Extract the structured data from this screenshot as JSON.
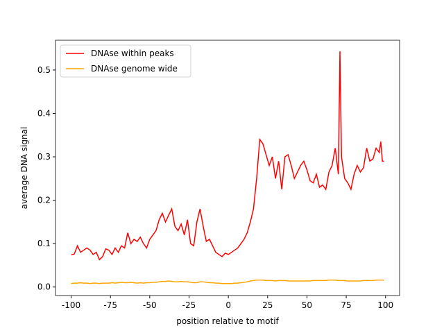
{
  "chart_data": {
    "type": "line",
    "xlabel": "position relative to motif",
    "ylabel": "average DNA signal",
    "x": [
      -100,
      -98,
      -96,
      -94,
      -92,
      -90,
      -88,
      -86,
      -84,
      -82,
      -80,
      -78,
      -76,
      -74,
      -72,
      -70,
      -68,
      -66,
      -64,
      -62,
      -60,
      -58,
      -56,
      -54,
      -52,
      -50,
      -48,
      -46,
      -44,
      -42,
      -40,
      -38,
      -36,
      -34,
      -32,
      -30,
      -28,
      -26,
      -24,
      -22,
      -20,
      -18,
      -16,
      -14,
      -12,
      -10,
      -8,
      -6,
      -4,
      -2,
      0,
      2,
      4,
      6,
      8,
      10,
      12,
      14,
      16,
      18,
      20,
      22,
      24,
      26,
      28,
      30,
      32,
      34,
      36,
      38,
      40,
      42,
      44,
      46,
      48,
      50,
      52,
      54,
      56,
      58,
      60,
      62,
      64,
      66,
      68,
      70,
      71,
      72,
      74,
      76,
      78,
      80,
      82,
      84,
      86,
      88,
      90,
      92,
      94,
      96,
      97,
      98,
      99
    ],
    "series": [
      {
        "name": "DNAse within peaks",
        "color": "#ff0000",
        "values": [
          0.074,
          0.076,
          0.095,
          0.08,
          0.085,
          0.09,
          0.085,
          0.075,
          0.08,
          0.063,
          0.07,
          0.088,
          0.085,
          0.075,
          0.09,
          0.08,
          0.095,
          0.09,
          0.125,
          0.1,
          0.11,
          0.105,
          0.115,
          0.1,
          0.09,
          0.11,
          0.12,
          0.13,
          0.155,
          0.17,
          0.15,
          0.165,
          0.18,
          0.14,
          0.13,
          0.145,
          0.12,
          0.155,
          0.1,
          0.095,
          0.15,
          0.18,
          0.14,
          0.105,
          0.11,
          0.095,
          0.08,
          0.075,
          0.07,
          0.078,
          0.075,
          0.08,
          0.085,
          0.09,
          0.1,
          0.11,
          0.125,
          0.15,
          0.18,
          0.25,
          0.34,
          0.33,
          0.305,
          0.28,
          0.3,
          0.25,
          0.29,
          0.225,
          0.3,
          0.305,
          0.28,
          0.25,
          0.265,
          0.28,
          0.29,
          0.27,
          0.245,
          0.24,
          0.26,
          0.23,
          0.235,
          0.225,
          0.265,
          0.28,
          0.32,
          0.26,
          0.543,
          0.3,
          0.25,
          0.24,
          0.225,
          0.26,
          0.28,
          0.265,
          0.275,
          0.32,
          0.29,
          0.295,
          0.32,
          0.31,
          0.335,
          0.29,
          0.29
        ]
      },
      {
        "name": "DNAse genome wide",
        "color": "#ffa500",
        "values": [
          0.008,
          0.009,
          0.009,
          0.01,
          0.009,
          0.009,
          0.008,
          0.009,
          0.009,
          0.008,
          0.009,
          0.009,
          0.009,
          0.01,
          0.009,
          0.01,
          0.011,
          0.01,
          0.01,
          0.011,
          0.01,
          0.009,
          0.01,
          0.009,
          0.01,
          0.01,
          0.011,
          0.011,
          0.012,
          0.013,
          0.013,
          0.014,
          0.013,
          0.012,
          0.012,
          0.013,
          0.012,
          0.012,
          0.011,
          0.01,
          0.01,
          0.012,
          0.012,
          0.011,
          0.01,
          0.01,
          0.009,
          0.009,
          0.008,
          0.008,
          0.008,
          0.008,
          0.009,
          0.009,
          0.01,
          0.011,
          0.012,
          0.014,
          0.015,
          0.016,
          0.016,
          0.016,
          0.015,
          0.015,
          0.015,
          0.014,
          0.015,
          0.015,
          0.015,
          0.014,
          0.014,
          0.014,
          0.014,
          0.014,
          0.014,
          0.014,
          0.014,
          0.015,
          0.015,
          0.015,
          0.015,
          0.015,
          0.016,
          0.016,
          0.016,
          0.015,
          0.015,
          0.015,
          0.015,
          0.014,
          0.014,
          0.014,
          0.014,
          0.014,
          0.015,
          0.015,
          0.015,
          0.015,
          0.016,
          0.016,
          0.016,
          0.016,
          0.016
        ]
      }
    ],
    "xlim": [
      -109.95,
      108.95
    ],
    "ylim": [
      -0.0196,
      0.5686
    ],
    "xticks": [
      -100,
      -75,
      -50,
      -25,
      0,
      25,
      50,
      75,
      100
    ],
    "yticks": [
      {
        "value": 0,
        "label": "0.0"
      },
      0.1,
      0.2,
      0.3,
      0.4,
      0.5
    ],
    "legend": "upper left"
  }
}
